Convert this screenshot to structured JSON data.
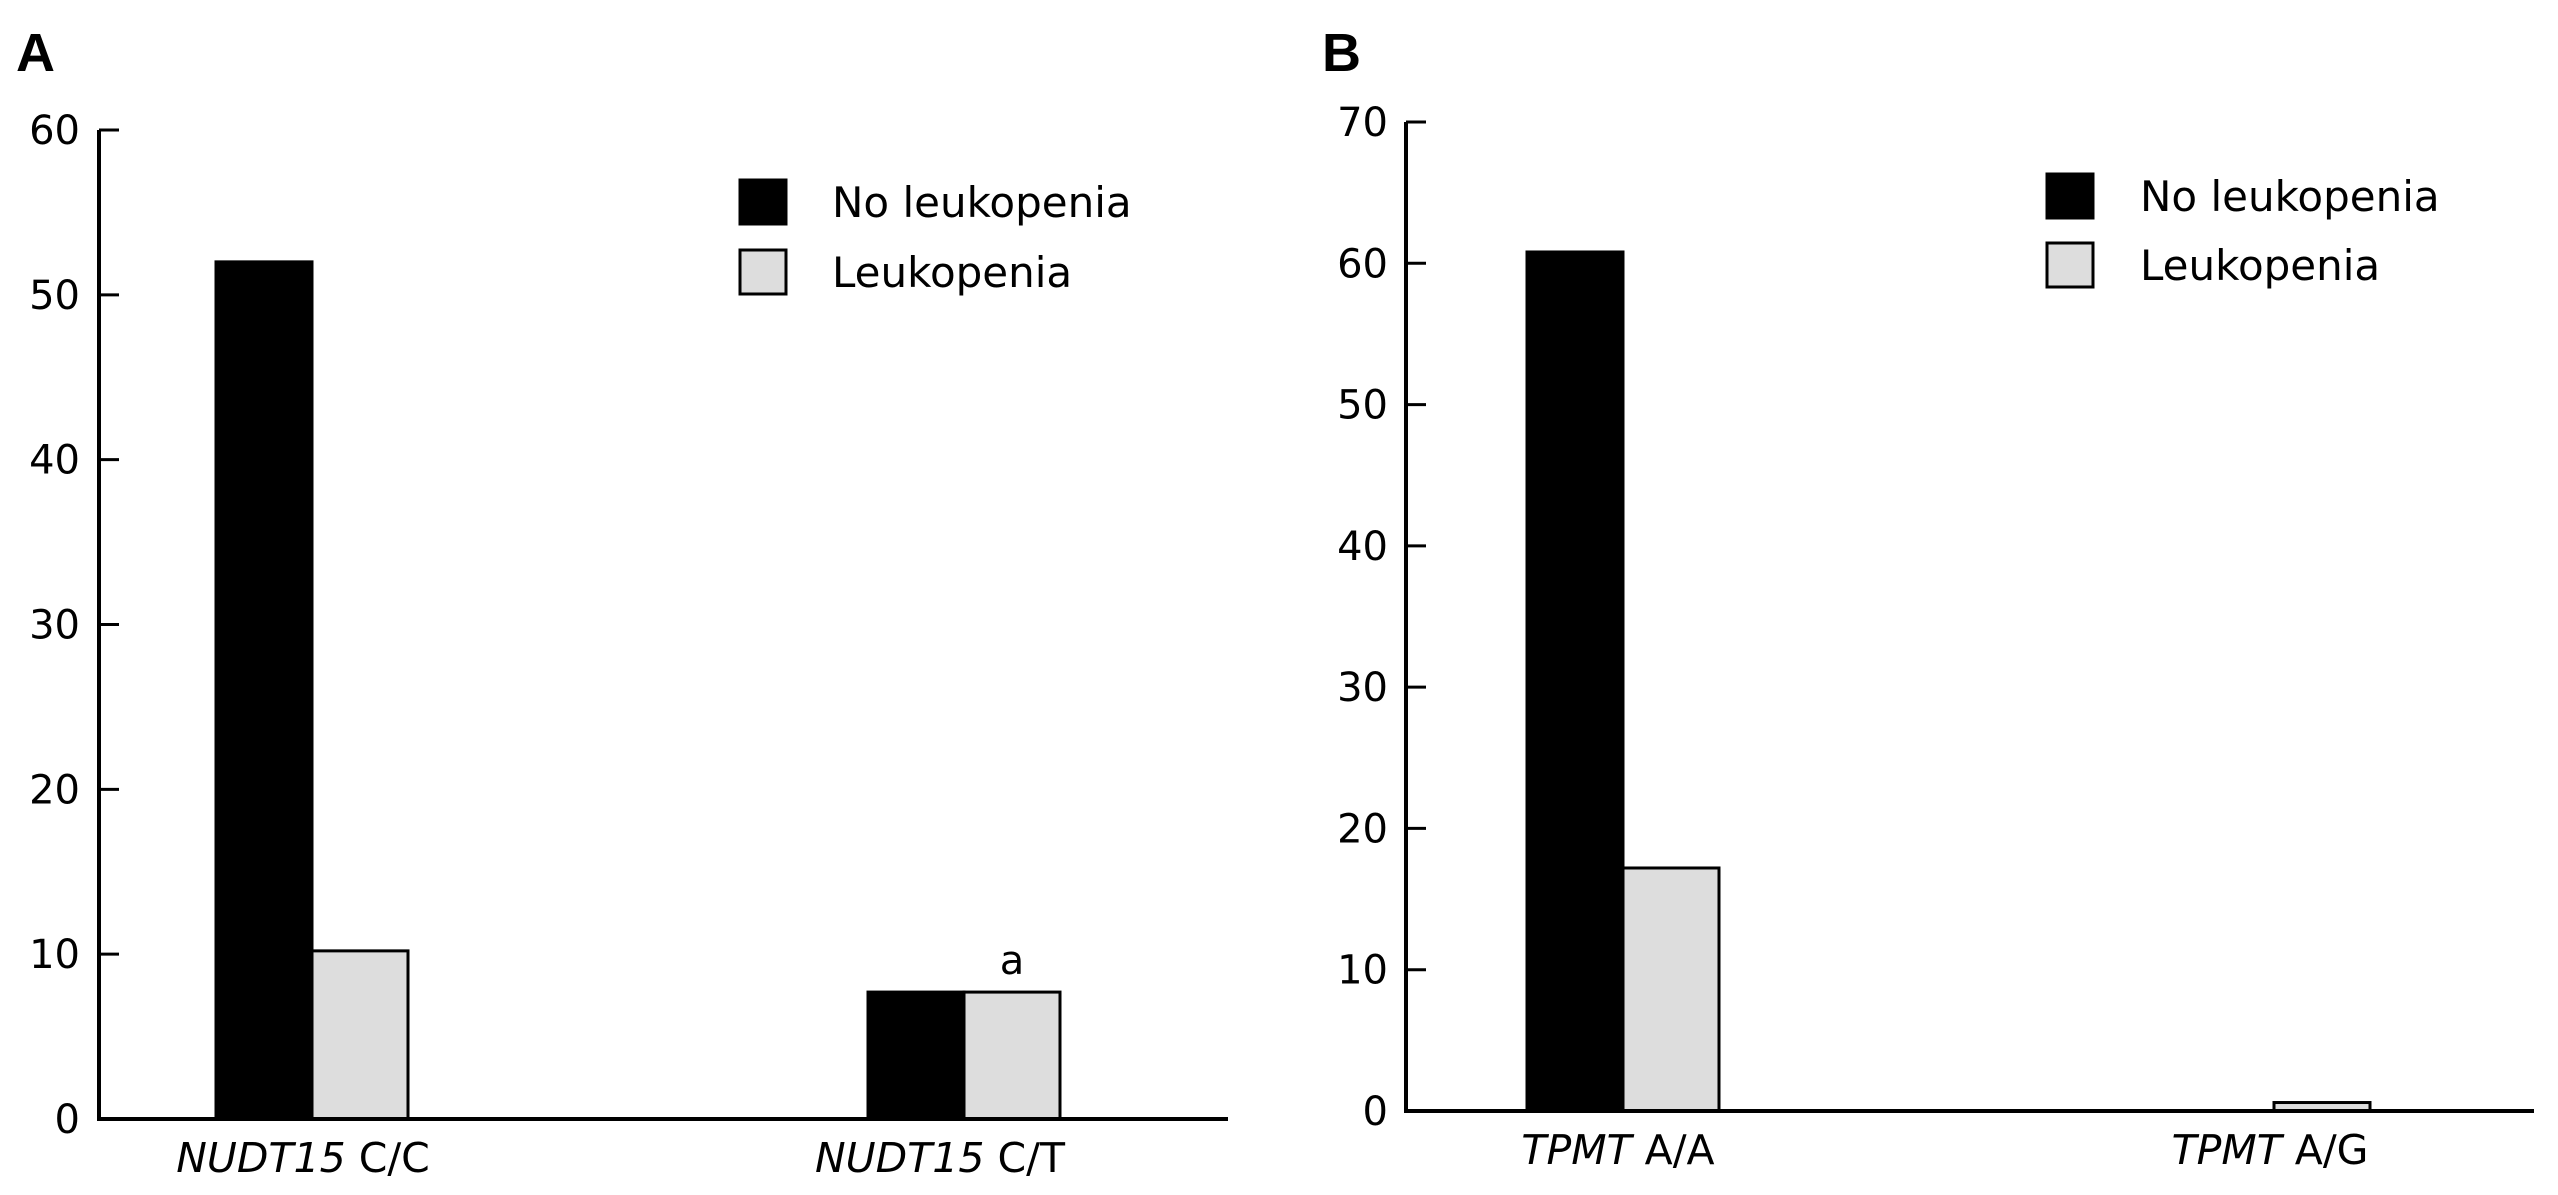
{
  "figure": {
    "panels": [
      "A",
      "B"
    ]
  },
  "chart_data": [
    {
      "type": "bar",
      "panel_label": "A",
      "categories": [
        {
          "italic": "NUDT15",
          "rest": " C/C"
        },
        {
          "italic": "NUDT15",
          "rest": " C/T"
        }
      ],
      "series": [
        {
          "name": "No leukopenia",
          "color": "#000000",
          "values": [
            52,
            7.7
          ]
        },
        {
          "name": "Leukopenia",
          "color": "#dddddd",
          "values": [
            10.2,
            7.7
          ]
        }
      ],
      "annotations": [
        {
          "text": "a",
          "category_index": 1,
          "series_index": 1
        }
      ],
      "ylim": [
        0,
        60
      ],
      "yticks": [
        "0",
        "10",
        "20",
        "30",
        "40",
        "50",
        "60"
      ],
      "legend_position": "top-right",
      "grid": false
    },
    {
      "type": "bar",
      "panel_label": "B",
      "categories": [
        {
          "italic": "TPMT",
          "rest": " A/A"
        },
        {
          "italic": "TPMT",
          "rest": " A/G"
        }
      ],
      "series": [
        {
          "name": "No leukopenia",
          "color": "#000000",
          "values": [
            60.8,
            0
          ]
        },
        {
          "name": "Leukopenia",
          "color": "#dddddd",
          "values": [
            17.2,
            0.6
          ]
        }
      ],
      "annotations": [],
      "ylim": [
        0,
        70
      ],
      "yticks": [
        "0",
        "10",
        "20",
        "30",
        "40",
        "50",
        "60",
        "70"
      ],
      "legend_position": "top-right",
      "grid": false
    }
  ]
}
